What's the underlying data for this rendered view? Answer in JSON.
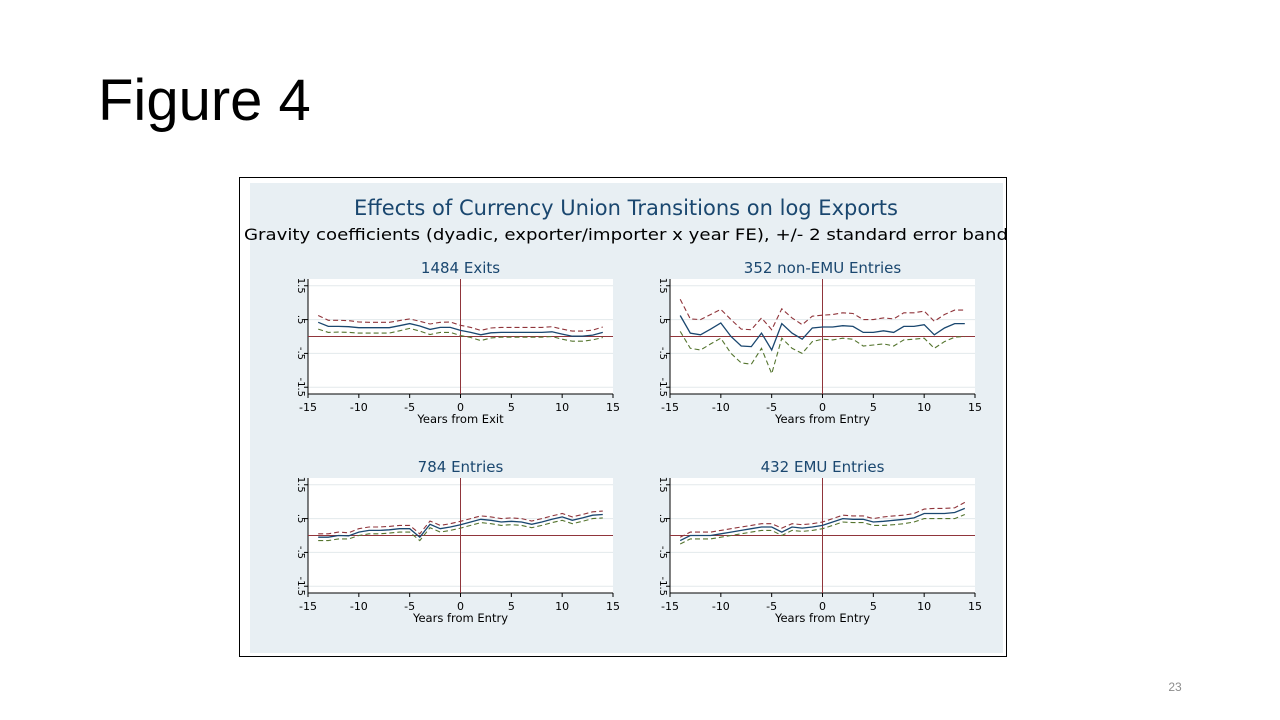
{
  "slide": {
    "title": "Figure 4",
    "number": "23"
  },
  "figure": {
    "title": "Effects of Currency Union Transitions on log Exports",
    "subtitle": "Gravity coefficients (dyadic, exporter/importer x year FE), +/- 2 standard error band",
    "colors": {
      "background": "#e8eff3",
      "plot_bg": "#ffffff",
      "estimate": "#1a476f",
      "upper_band": "#90353b",
      "lower_band": "#55752f",
      "zero_line": "#90353b",
      "event_line": "#90353b"
    }
  },
  "chart_data": [
    {
      "type": "line",
      "title": "1484 Exits",
      "xlabel": "Years from Exit",
      "ylabel": "",
      "xlim": [
        -15,
        15
      ],
      "ylim": [
        -1.7,
        1.7
      ],
      "x_ticks": [
        "-15",
        "-10",
        "-5",
        "0",
        "5",
        "10",
        "15"
      ],
      "y_ticks": [
        "-1.5",
        "-.5",
        ".5",
        "1.5"
      ],
      "grid": true,
      "hline": 0,
      "vline": 0,
      "x": [
        -14,
        -13,
        -12,
        -11,
        -10,
        -9,
        -8,
        -7,
        -6,
        -5,
        -4,
        -3,
        -2,
        -1,
        0,
        1,
        2,
        3,
        4,
        5,
        6,
        7,
        8,
        9,
        10,
        11,
        12,
        13,
        14
      ],
      "series": [
        {
          "role": "upper",
          "values": [
            0.62,
            0.48,
            0.48,
            0.47,
            0.43,
            0.42,
            0.42,
            0.42,
            0.47,
            0.52,
            0.45,
            0.37,
            0.42,
            0.43,
            0.33,
            0.27,
            0.18,
            0.25,
            0.27,
            0.27,
            0.27,
            0.27,
            0.27,
            0.29,
            0.22,
            0.16,
            0.16,
            0.19,
            0.28
          ]
        },
        {
          "role": "estimate",
          "values": [
            0.42,
            0.3,
            0.3,
            0.29,
            0.26,
            0.26,
            0.26,
            0.26,
            0.32,
            0.38,
            0.31,
            0.21,
            0.27,
            0.27,
            0.18,
            0.12,
            0.05,
            0.11,
            0.12,
            0.12,
            0.12,
            0.12,
            0.12,
            0.14,
            0.07,
            0.01,
            0.01,
            0.04,
            0.12
          ]
        },
        {
          "role": "lower",
          "values": [
            0.22,
            0.12,
            0.13,
            0.12,
            0.1,
            0.1,
            0.1,
            0.1,
            0.17,
            0.24,
            0.16,
            0.06,
            0.12,
            0.12,
            0.03,
            -0.03,
            -0.12,
            -0.04,
            -0.02,
            -0.02,
            -0.02,
            -0.02,
            -0.02,
            0.0,
            -0.08,
            -0.14,
            -0.14,
            -0.1,
            -0.03
          ]
        }
      ]
    },
    {
      "type": "line",
      "title": "352 non-EMU Entries",
      "xlabel": "Years from Entry",
      "ylabel": "",
      "xlim": [
        -15,
        15
      ],
      "ylim": [
        -1.7,
        1.7
      ],
      "x_ticks": [
        "-15",
        "-10",
        "-5",
        "0",
        "5",
        "10",
        "15"
      ],
      "y_ticks": [
        "-1.5",
        "-.5",
        ".5",
        "1.5"
      ],
      "grid": true,
      "hline": 0,
      "vline": 0,
      "x": [
        -14,
        -13,
        -12,
        -11,
        -10,
        -9,
        -8,
        -7,
        -6,
        -5,
        -4,
        -3,
        -2,
        -1,
        0,
        1,
        2,
        3,
        4,
        5,
        6,
        7,
        8,
        9,
        10,
        11,
        12,
        13,
        14
      ],
      "series": [
        {
          "role": "upper",
          "values": [
            1.1,
            0.52,
            0.5,
            0.65,
            0.8,
            0.5,
            0.22,
            0.2,
            0.55,
            0.2,
            0.82,
            0.55,
            0.35,
            0.6,
            0.63,
            0.65,
            0.7,
            0.68,
            0.5,
            0.5,
            0.55,
            0.52,
            0.7,
            0.7,
            0.75,
            0.45,
            0.65,
            0.78,
            0.78
          ]
        },
        {
          "role": "estimate",
          "values": [
            0.62,
            0.1,
            0.05,
            0.22,
            0.4,
            0.0,
            -0.28,
            -0.3,
            0.1,
            -0.4,
            0.38,
            0.1,
            -0.08,
            0.25,
            0.28,
            0.28,
            0.32,
            0.3,
            0.12,
            0.12,
            0.17,
            0.12,
            0.3,
            0.3,
            0.35,
            0.05,
            0.25,
            0.38,
            0.38
          ]
        },
        {
          "role": "lower",
          "values": [
            0.15,
            -0.35,
            -0.4,
            -0.22,
            -0.05,
            -0.5,
            -0.78,
            -0.82,
            -0.35,
            -1.1,
            -0.05,
            -0.35,
            -0.5,
            -0.15,
            -0.08,
            -0.1,
            -0.05,
            -0.08,
            -0.28,
            -0.25,
            -0.22,
            -0.28,
            -0.1,
            -0.08,
            -0.05,
            -0.35,
            -0.15,
            -0.02,
            0.0
          ]
        }
      ]
    },
    {
      "type": "line",
      "title": "784 Entries",
      "xlabel": "Years from Entry",
      "ylabel": "",
      "xlim": [
        -15,
        15
      ],
      "ylim": [
        -1.7,
        1.7
      ],
      "x_ticks": [
        "-15",
        "-10",
        "-5",
        "0",
        "5",
        "10",
        "15"
      ],
      "y_ticks": [
        "-1.5",
        "-.5",
        ".5",
        "1.5"
      ],
      "grid": true,
      "hline": 0,
      "vline": 0,
      "x": [
        -14,
        -13,
        -12,
        -11,
        -10,
        -9,
        -8,
        -7,
        -6,
        -5,
        -4,
        -3,
        -2,
        -1,
        0,
        1,
        2,
        3,
        4,
        5,
        6,
        7,
        8,
        9,
        10,
        11,
        12,
        13,
        14
      ],
      "series": [
        {
          "role": "upper",
          "values": [
            0.05,
            0.05,
            0.1,
            0.08,
            0.2,
            0.25,
            0.25,
            0.27,
            0.3,
            0.3,
            0.05,
            0.43,
            0.3,
            0.35,
            0.42,
            0.5,
            0.58,
            0.55,
            0.5,
            0.52,
            0.5,
            0.43,
            0.5,
            0.58,
            0.65,
            0.55,
            0.62,
            0.7,
            0.72
          ]
        },
        {
          "role": "estimate",
          "values": [
            -0.05,
            -0.05,
            0.0,
            -0.01,
            0.1,
            0.15,
            0.15,
            0.17,
            0.2,
            0.2,
            -0.05,
            0.33,
            0.2,
            0.25,
            0.32,
            0.4,
            0.48,
            0.45,
            0.4,
            0.42,
            0.4,
            0.33,
            0.4,
            0.48,
            0.55,
            0.45,
            0.52,
            0.6,
            0.62
          ]
        },
        {
          "role": "lower",
          "values": [
            -0.15,
            -0.15,
            -0.1,
            -0.1,
            0.0,
            0.05,
            0.05,
            0.07,
            0.1,
            0.1,
            -0.15,
            0.23,
            0.1,
            0.15,
            0.22,
            0.3,
            0.38,
            0.35,
            0.3,
            0.32,
            0.3,
            0.23,
            0.3,
            0.38,
            0.45,
            0.35,
            0.42,
            0.5,
            0.52
          ]
        }
      ]
    },
    {
      "type": "line",
      "title": "432 EMU Entries",
      "xlabel": "Years from Entry",
      "ylabel": "",
      "xlim": [
        -15,
        15
      ],
      "ylim": [
        -1.7,
        1.7
      ],
      "x_ticks": [
        "-15",
        "-10",
        "-5",
        "0",
        "5",
        "10",
        "15"
      ],
      "y_ticks": [
        "-1.5",
        "-.5",
        ".5",
        "1.5"
      ],
      "grid": true,
      "hline": 0,
      "vline": 0,
      "x": [
        -14,
        -13,
        -12,
        -11,
        -10,
        -9,
        -8,
        -7,
        -6,
        -5,
        -4,
        -3,
        -2,
        -1,
        0,
        1,
        2,
        3,
        4,
        5,
        6,
        7,
        8,
        9,
        10,
        11,
        12,
        13,
        14
      ],
      "series": [
        {
          "role": "upper",
          "values": [
            -0.05,
            0.1,
            0.1,
            0.1,
            0.15,
            0.2,
            0.25,
            0.3,
            0.35,
            0.35,
            0.22,
            0.35,
            0.32,
            0.35,
            0.4,
            0.5,
            0.6,
            0.58,
            0.58,
            0.5,
            0.55,
            0.58,
            0.6,
            0.65,
            0.78,
            0.8,
            0.8,
            0.82,
            0.98
          ]
        },
        {
          "role": "estimate",
          "values": [
            -0.15,
            0.0,
            0.0,
            0.0,
            0.05,
            0.1,
            0.15,
            0.2,
            0.25,
            0.25,
            0.1,
            0.25,
            0.22,
            0.25,
            0.3,
            0.4,
            0.5,
            0.48,
            0.48,
            0.4,
            0.42,
            0.45,
            0.48,
            0.52,
            0.65,
            0.65,
            0.65,
            0.68,
            0.8
          ]
        },
        {
          "role": "lower",
          "values": [
            -0.25,
            -0.1,
            -0.1,
            -0.1,
            -0.05,
            0.0,
            0.05,
            0.1,
            0.15,
            0.15,
            0.0,
            0.15,
            0.12,
            0.15,
            0.2,
            0.3,
            0.4,
            0.38,
            0.38,
            0.3,
            0.3,
            0.32,
            0.35,
            0.4,
            0.5,
            0.5,
            0.5,
            0.5,
            0.62
          ]
        }
      ]
    }
  ]
}
